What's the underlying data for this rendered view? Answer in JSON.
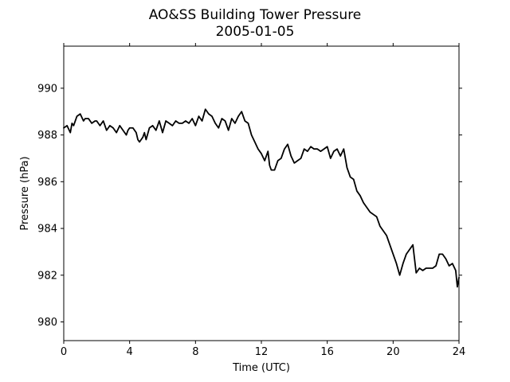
{
  "chart_data": {
    "type": "line",
    "title": "AO&SS Building Tower Pressure",
    "subtitle": "2005-01-05",
    "xlabel": "Time (UTC)",
    "ylabel": "Pressure (hPa)",
    "xlim": [
      0,
      24
    ],
    "ylim": [
      979.2,
      991.8
    ],
    "xticks": [
      0,
      4,
      8,
      12,
      16,
      20,
      24
    ],
    "yticks": [
      980,
      982,
      984,
      986,
      988,
      990
    ],
    "grid": false,
    "legend": "none",
    "colors": {
      "line": "#000000",
      "axes": "#000000",
      "background": "#ffffff"
    },
    "series": [
      {
        "x": [
          0.0,
          0.2,
          0.4,
          0.5,
          0.6,
          0.8,
          1.0,
          1.2,
          1.3,
          1.5,
          1.7,
          1.9,
          2.0,
          2.2,
          2.4,
          2.6,
          2.8,
          3.0,
          3.2,
          3.4,
          3.6,
          3.8,
          3.9,
          4.0,
          4.2,
          4.4,
          4.5,
          4.6,
          4.8,
          4.9,
          5.0,
          5.2,
          5.4,
          5.6,
          5.8,
          6.0,
          6.2,
          6.4,
          6.6,
          6.8,
          7.0,
          7.2,
          7.4,
          7.6,
          7.8,
          8.0,
          8.2,
          8.4,
          8.6,
          8.8,
          9.0,
          9.2,
          9.4,
          9.6,
          9.8,
          10.0,
          10.2,
          10.4,
          10.6,
          10.8,
          11.0,
          11.2,
          11.4,
          11.6,
          11.8,
          12.0,
          12.2,
          12.4,
          12.5,
          12.6,
          12.8,
          13.0,
          13.2,
          13.4,
          13.6,
          13.8,
          14.0,
          14.2,
          14.4,
          14.6,
          14.8,
          15.0,
          15.2,
          15.4,
          15.6,
          15.8,
          16.0,
          16.2,
          16.4,
          16.6,
          16.8,
          17.0,
          17.2,
          17.4,
          17.6,
          17.8,
          18.0,
          18.2,
          18.4,
          18.6,
          18.8,
          19.0,
          19.2,
          19.4,
          19.6,
          19.8,
          20.0,
          20.2,
          20.4,
          20.6,
          20.8,
          21.0,
          21.2,
          21.4,
          21.6,
          21.8,
          22.0,
          22.2,
          22.4,
          22.6,
          22.8,
          23.0,
          23.2,
          23.4,
          23.6,
          23.8,
          23.9,
          24.0
        ],
        "values": [
          988.3,
          988.4,
          988.1,
          988.5,
          988.4,
          988.8,
          988.9,
          988.6,
          988.7,
          988.7,
          988.5,
          988.6,
          988.6,
          988.4,
          988.6,
          988.2,
          988.4,
          988.3,
          988.1,
          988.4,
          988.2,
          988.0,
          988.2,
          988.3,
          988.3,
          988.1,
          987.8,
          987.7,
          987.9,
          988.1,
          987.8,
          988.3,
          988.4,
          988.2,
          988.6,
          988.1,
          988.6,
          988.5,
          988.4,
          988.6,
          988.5,
          988.5,
          988.6,
          988.5,
          988.7,
          988.4,
          988.8,
          988.6,
          989.1,
          988.9,
          988.8,
          988.5,
          988.3,
          988.7,
          988.6,
          988.2,
          988.7,
          988.5,
          988.8,
          989.0,
          988.6,
          988.5,
          988.0,
          987.7,
          987.4,
          987.2,
          986.9,
          987.3,
          986.7,
          986.5,
          986.5,
          986.9,
          987.0,
          987.4,
          987.6,
          987.1,
          986.8,
          986.9,
          987.0,
          987.4,
          987.3,
          987.5,
          987.4,
          987.4,
          987.3,
          987.4,
          987.5,
          987.0,
          987.3,
          987.4,
          987.1,
          987.4,
          986.6,
          986.2,
          986.1,
          985.6,
          985.4,
          985.1,
          984.9,
          984.7,
          984.6,
          984.5,
          984.1,
          983.9,
          983.7,
          983.3,
          982.9,
          982.5,
          982.0,
          982.5,
          982.9,
          983.1,
          983.3,
          982.1,
          982.3,
          982.2,
          982.3,
          982.3,
          982.3,
          982.4,
          982.9,
          982.9,
          982.7,
          982.4,
          982.5,
          982.2,
          981.5,
          981.9
        ]
      }
    ]
  }
}
